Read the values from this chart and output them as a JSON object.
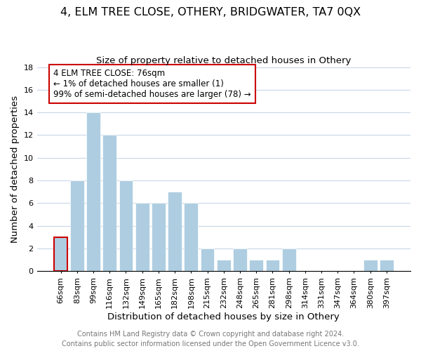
{
  "title": "4, ELM TREE CLOSE, OTHERY, BRIDGWATER, TA7 0QX",
  "subtitle": "Size of property relative to detached houses in Othery",
  "xlabel": "Distribution of detached houses by size in Othery",
  "ylabel": "Number of detached properties",
  "categories": [
    "66sqm",
    "83sqm",
    "99sqm",
    "116sqm",
    "132sqm",
    "149sqm",
    "165sqm",
    "182sqm",
    "198sqm",
    "215sqm",
    "232sqm",
    "248sqm",
    "265sqm",
    "281sqm",
    "298sqm",
    "314sqm",
    "331sqm",
    "347sqm",
    "364sqm",
    "380sqm",
    "397sqm"
  ],
  "values": [
    3,
    8,
    14,
    12,
    8,
    6,
    6,
    7,
    6,
    2,
    1,
    2,
    1,
    1,
    2,
    0,
    0,
    0,
    0,
    1,
    1
  ],
  "bar_color": "#aecde1",
  "highlight_bar_index": 0,
  "highlight_bar_edge_color": "#cc0000",
  "annotation_text": "4 ELM TREE CLOSE: 76sqm\n← 1% of detached houses are smaller (1)\n99% of semi-detached houses are larger (78) →",
  "annotation_box_edge_color": "#cc0000",
  "ylim": [
    0,
    18
  ],
  "yticks": [
    0,
    2,
    4,
    6,
    8,
    10,
    12,
    14,
    16,
    18
  ],
  "footer_line1": "Contains HM Land Registry data © Crown copyright and database right 2024.",
  "footer_line2": "Contains public sector information licensed under the Open Government Licence v3.0.",
  "background_color": "#ffffff",
  "grid_color": "#c8d8e8",
  "title_fontsize": 11.5,
  "subtitle_fontsize": 9.5,
  "axis_label_fontsize": 9.5,
  "tick_fontsize": 8,
  "annotation_fontsize": 8.5,
  "footer_fontsize": 7
}
